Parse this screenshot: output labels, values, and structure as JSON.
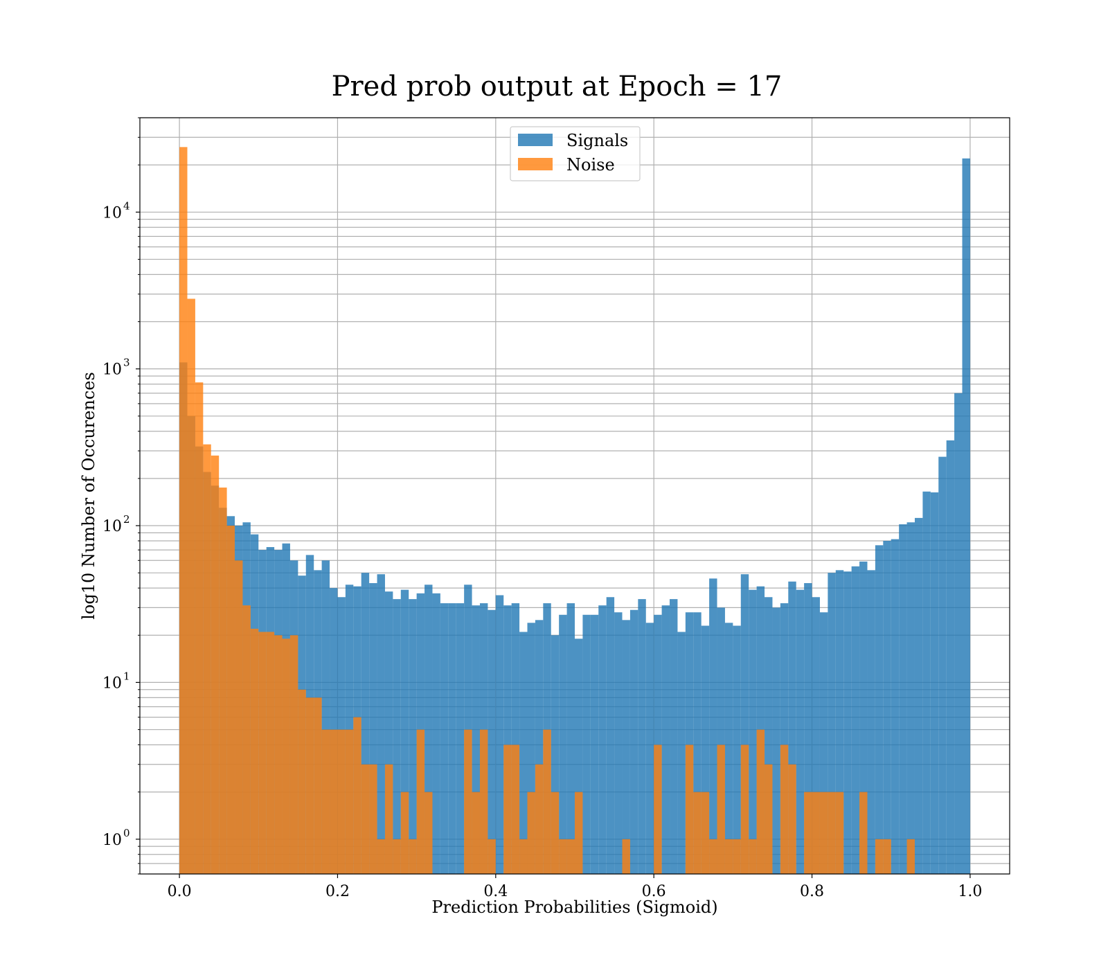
{
  "chart_data": {
    "type": "bar",
    "subtype": "histogram",
    "title": "Pred prob output at Epoch = 17",
    "xlabel": "Prediction Probabilities (Sigmoid)",
    "ylabel": "log10 Number of Occurences",
    "xlim": [
      -0.05,
      1.05
    ],
    "ylim": [
      0.6,
      40000
    ],
    "yscale": "log",
    "grid": "on (major and minor)",
    "legend_position": "top-center",
    "bins": 100,
    "bin_range": [
      0,
      1
    ],
    "x_ticks": [
      "0.0",
      "0.2",
      "0.4",
      "0.6",
      "0.8",
      "1.0"
    ],
    "y_ticks": [
      {
        "base": "10",
        "exp": "0"
      },
      {
        "base": "10",
        "exp": "1"
      },
      {
        "base": "10",
        "exp": "2"
      },
      {
        "base": "10",
        "exp": "3"
      },
      {
        "base": "10",
        "exp": "4"
      }
    ],
    "series": [
      {
        "name": "Signals",
        "color": "#1f77b4",
        "values": [
          1100,
          500,
          320,
          220,
          180,
          130,
          115,
          100,
          105,
          88,
          70,
          73,
          70,
          77,
          60,
          48,
          65,
          52,
          60,
          40,
          35,
          42,
          41,
          50,
          43,
          49,
          38,
          34,
          39,
          34,
          37,
          42,
          37,
          32,
          32,
          32,
          42,
          31,
          32,
          29,
          36,
          31,
          32,
          21,
          24,
          25,
          32,
          20,
          27,
          32,
          19,
          27,
          27,
          31,
          35,
          28,
          25,
          29,
          34,
          24,
          27,
          31,
          34,
          21,
          28,
          28,
          23,
          46,
          30,
          24,
          23,
          49,
          39,
          41,
          35,
          30,
          32,
          44,
          39,
          43,
          35,
          28,
          50,
          52,
          51,
          55,
          59,
          52,
          75,
          80,
          82,
          102,
          105,
          112,
          165,
          163,
          275,
          350,
          700,
          22000
        ]
      },
      {
        "name": "Noise",
        "color": "#ff7f0e",
        "values": [
          26000,
          2800,
          820,
          330,
          280,
          175,
          100,
          60,
          31,
          22,
          21,
          21,
          20,
          19,
          20,
          9,
          8,
          8,
          5,
          5,
          5,
          5,
          6,
          3,
          3,
          1,
          3,
          1,
          2,
          1,
          5,
          2,
          0,
          0,
          0,
          0,
          5,
          2,
          5,
          1,
          0,
          4,
          4,
          1,
          2,
          3,
          5,
          2,
          1,
          1,
          2,
          0,
          0,
          0,
          0,
          0,
          1,
          0,
          0,
          0,
          4,
          0,
          0,
          0,
          4,
          2,
          2,
          1,
          4,
          1,
          1,
          4,
          1,
          5,
          3,
          0,
          4,
          3,
          0,
          2,
          2,
          2,
          2,
          2,
          0,
          0,
          2,
          0,
          1,
          1,
          0,
          0,
          1,
          0,
          0,
          0,
          0,
          0,
          0,
          0
        ]
      }
    ]
  }
}
